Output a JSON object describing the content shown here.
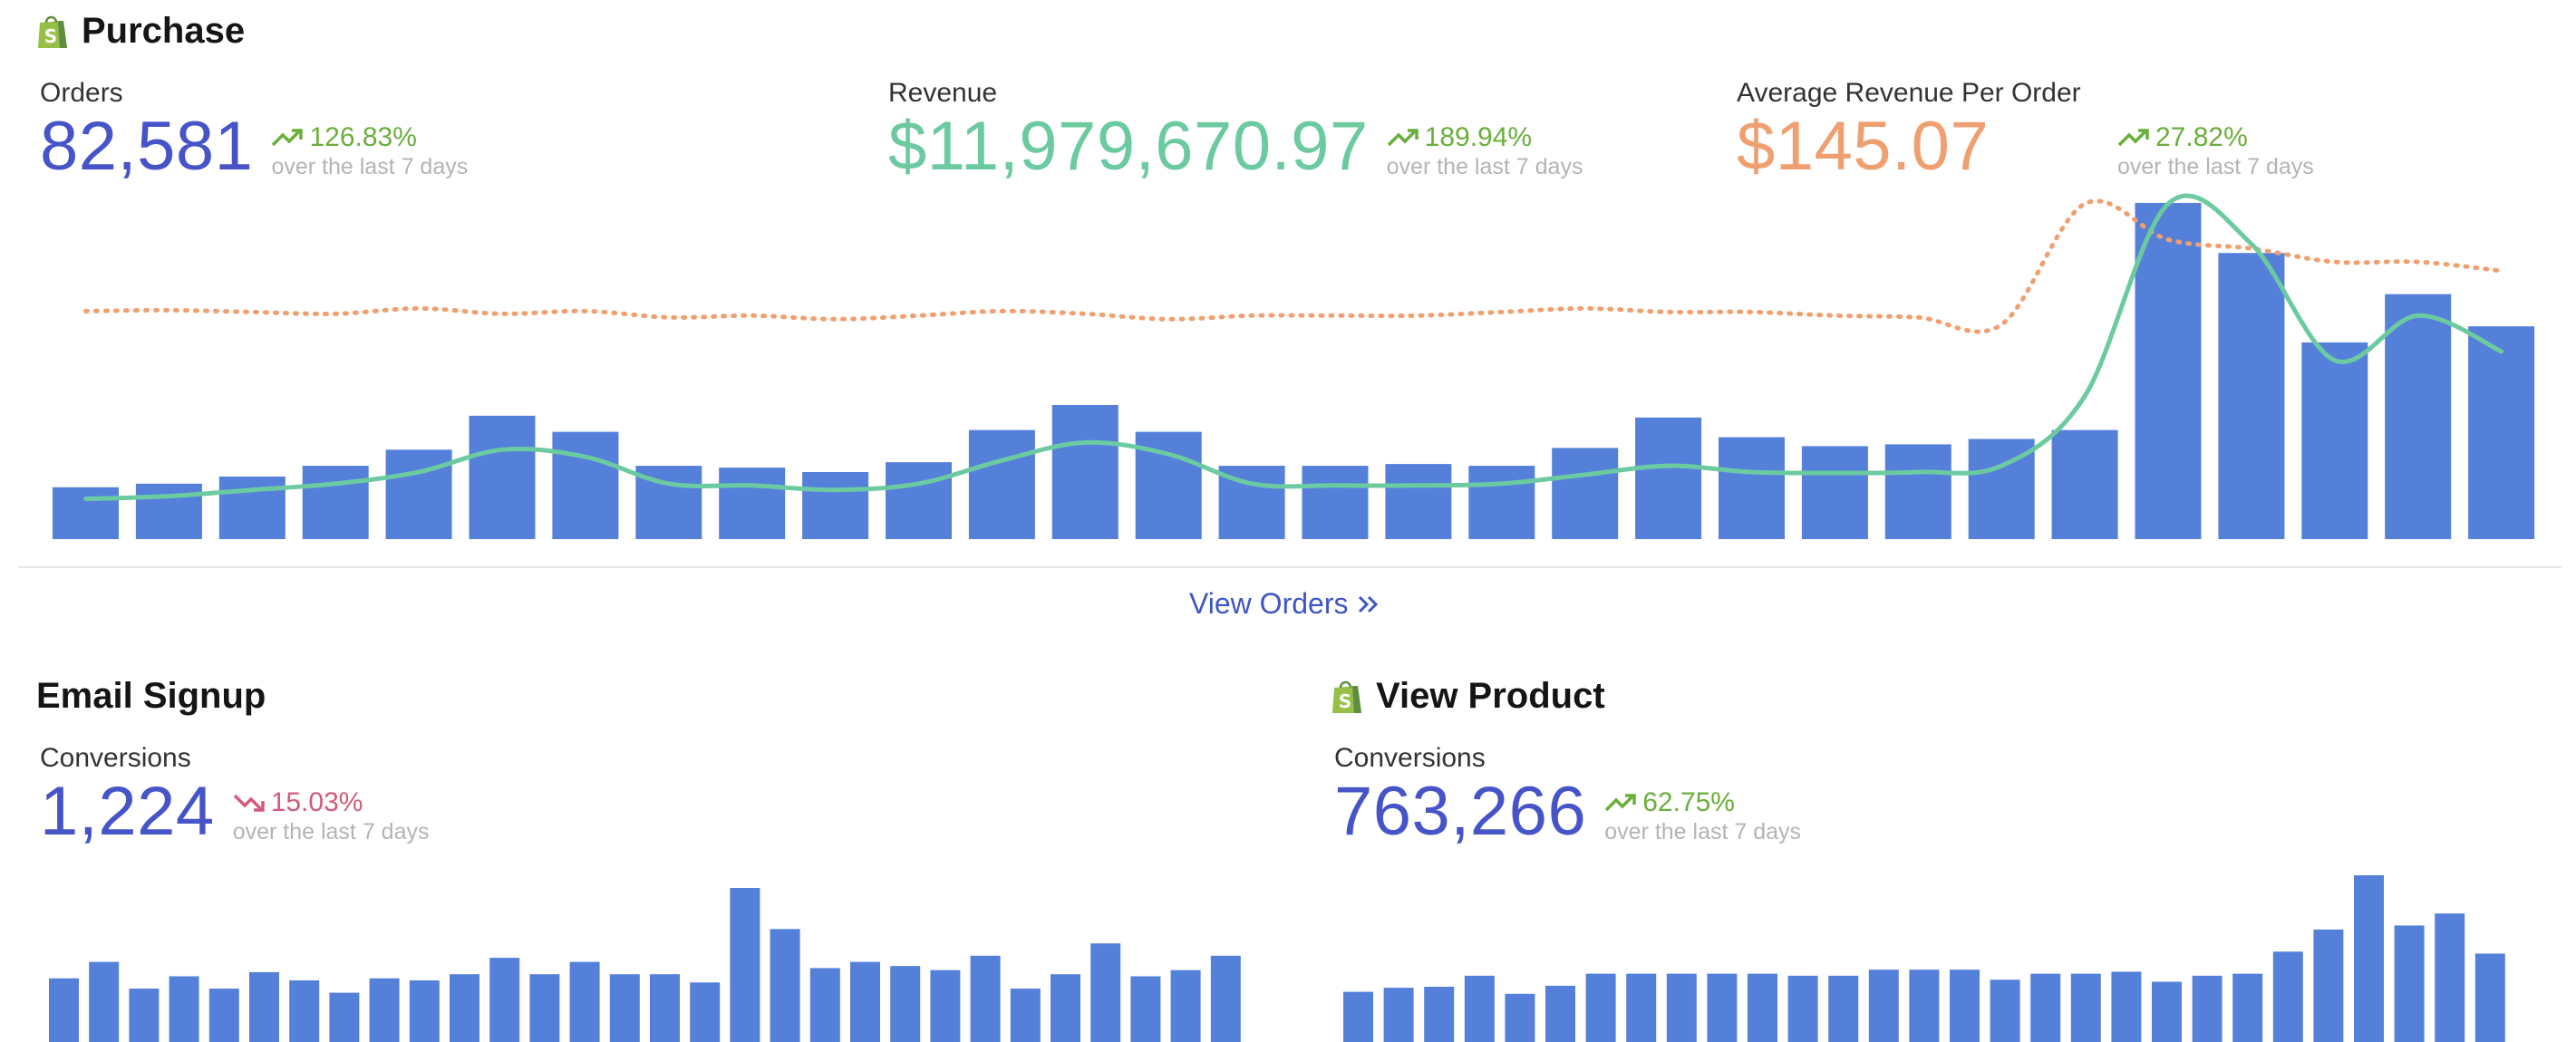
{
  "colors": {
    "bar": "#5580da",
    "orders_value": "#4654c8",
    "revenue_value": "#6ccaa0",
    "aov_value": "#f0a070",
    "trend_up": "#6aae3c",
    "trend_down": "#d45a7c",
    "shop_icon": "#95bf47"
  },
  "purchase": {
    "title": "Purchase",
    "icon": "shopping-bag-icon",
    "metrics": [
      {
        "label": "Orders",
        "value": "82,581",
        "change": "126.83%",
        "direction": "up",
        "period": "over the last 7 days"
      },
      {
        "label": "Revenue",
        "value": "$11,979,670.97",
        "change": "189.94%",
        "direction": "up",
        "period": "over the last 7 days"
      },
      {
        "label": "Average Revenue Per Order",
        "value": "$145.07",
        "change": "27.82%",
        "direction": "up",
        "period": "over the last 7 days"
      }
    ],
    "view_link": "View Orders"
  },
  "email_signup": {
    "title": "Email Signup",
    "metric": {
      "label": "Conversions",
      "value": "1,224",
      "change": "15.03%",
      "direction": "down",
      "period": "over the last 7 days"
    }
  },
  "view_product": {
    "title": "View Product",
    "icon": "shopping-bag-icon",
    "metric": {
      "label": "Conversions",
      "value": "763,266",
      "change": "62.75%",
      "direction": "up",
      "period": "over the last 7 days"
    }
  },
  "chart_data": [
    {
      "type": "bar",
      "series": [
        {
          "name": "Orders",
          "type": "bar",
          "values": [
            58,
            62,
            70,
            82,
            100,
            138,
            120,
            82,
            80,
            75,
            86,
            122,
            150,
            120,
            82,
            82,
            84,
            82,
            102,
            136,
            114,
            104,
            106,
            112,
            122,
            376,
            320,
            220,
            274,
            238
          ]
        },
        {
          "name": "Revenue",
          "type": "line",
          "values": [
            45,
            48,
            55,
            62,
            75,
            100,
            92,
            62,
            60,
            55,
            62,
            88,
            108,
            95,
            62,
            60,
            60,
            62,
            72,
            82,
            75,
            74,
            75,
            82,
            160,
            375,
            330,
            200,
            250,
            210
          ]
        },
        {
          "name": "Average Revenue Per Order",
          "type": "line",
          "style": "dotted",
          "values": [
            255,
            256,
            254,
            252,
            258,
            252,
            255,
            248,
            250,
            246,
            250,
            255,
            252,
            246,
            250,
            250,
            250,
            254,
            258,
            254,
            254,
            250,
            248,
            240,
            375,
            335,
            325,
            310,
            310,
            300
          ]
        }
      ],
      "ylim": [
        0,
        380
      ],
      "grid": false
    },
    {
      "type": "bar",
      "series": [
        {
          "name": "Conversions",
          "values": [
            62,
            78,
            52,
            64,
            52,
            68,
            60,
            48,
            62,
            60,
            66,
            82,
            66,
            78,
            66,
            66,
            58,
            150,
            110,
            72,
            78,
            74,
            70,
            84,
            52,
            66,
            96,
            64,
            70,
            84
          ]
        }
      ],
      "ylim": [
        0,
        150
      ],
      "grid": false
    },
    {
      "type": "bar",
      "series": [
        {
          "name": "Conversions",
          "values": [
            50,
            54,
            55,
            66,
            48,
            56,
            68,
            68,
            68,
            68,
            68,
            66,
            66,
            72,
            72,
            72,
            62,
            68,
            68,
            70,
            60,
            66,
            68,
            90,
            112,
            166,
            116,
            128,
            88
          ]
        }
      ],
      "ylim": [
        0,
        166
      ],
      "grid": false
    }
  ]
}
